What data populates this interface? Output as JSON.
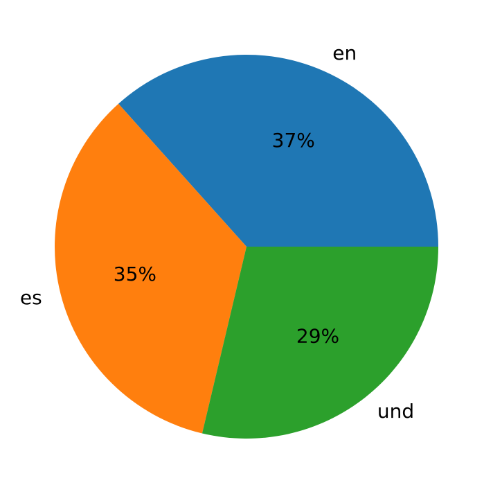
{
  "chart_data": {
    "type": "pie",
    "categories": [
      "en",
      "es",
      "und"
    ],
    "values": [
      37,
      35,
      29
    ],
    "value_labels": [
      "37%",
      "35%",
      "29%"
    ],
    "colors": [
      "#1f77b4",
      "#ff7f0e",
      "#2ca02c"
    ]
  }
}
